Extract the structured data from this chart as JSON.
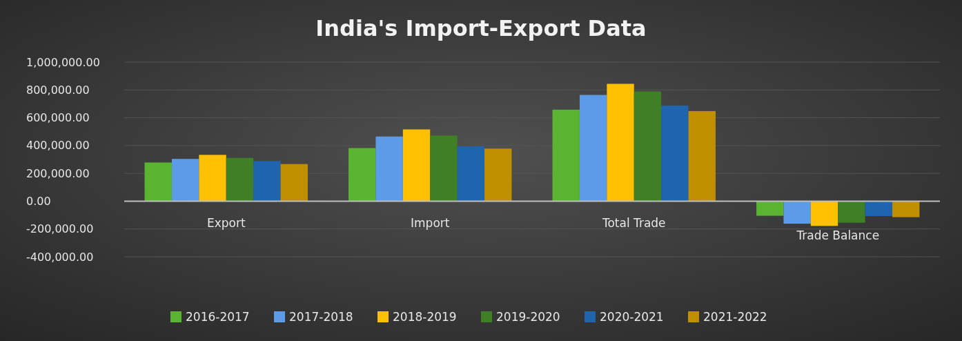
{
  "chart_data": {
    "type": "bar",
    "title": "India's Import-Export Data",
    "categories": [
      "Export",
      "Import",
      "Total Trade",
      "Trade Balance"
    ],
    "series": [
      {
        "name": "2016-2017",
        "color": "#5bb431",
        "values": [
          278000,
          382000,
          658000,
          -105000
        ]
      },
      {
        "name": "2017-2018",
        "color": "#5b9be8",
        "values": [
          304000,
          465000,
          764000,
          -162000
        ]
      },
      {
        "name": "2018-2019",
        "color": "#fec000",
        "values": [
          333000,
          516000,
          844000,
          -178000
        ]
      },
      {
        "name": "2019-2020",
        "color": "#3f7f25",
        "values": [
          311000,
          472000,
          790000,
          -155000
        ]
      },
      {
        "name": "2020-2021",
        "color": "#1f64ad",
        "values": [
          289000,
          394000,
          688000,
          -107000
        ]
      },
      {
        "name": "2021-2022",
        "color": "#bf8f00",
        "values": [
          267000,
          378000,
          648000,
          -115000
        ]
      }
    ],
    "ylim": [
      -400000,
      1000000
    ],
    "yticks": [
      {
        "value": -400000,
        "label": "-400,000.00"
      },
      {
        "value": -200000,
        "label": "-200,000.00"
      },
      {
        "value": 0,
        "label": "0.00"
      },
      {
        "value": 200000,
        "label": "200,000.00"
      },
      {
        "value": 400000,
        "label": "400,000.00"
      },
      {
        "value": 600000,
        "label": "600,000.00"
      },
      {
        "value": 800000,
        "label": "800,000.00"
      },
      {
        "value": 1000000,
        "label": "1,000,000.00"
      }
    ],
    "grid": true,
    "legend": "bottom"
  }
}
